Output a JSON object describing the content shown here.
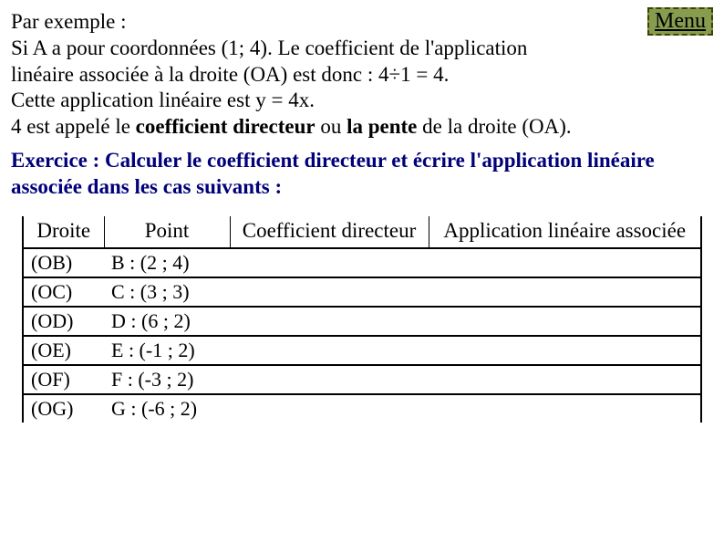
{
  "menu_label": "Menu",
  "example": {
    "line1": "Par exemple :",
    "line2": "Si A a pour coordonnées (1; 4). Le coefficient de l'application",
    "line3": "linéaire associée à la droite (OA) est donc : 4÷1 = 4.",
    "line4": "Cette application linéaire est y = 4x.",
    "line5a": "4 est appelé le ",
    "line5b": "coefficient directeur",
    "line5c": " ou ",
    "line5d": "la pente",
    "line5e": " de la droite (OA)."
  },
  "exercise": {
    "line1": "Exercice : Calculer le coefficient directeur et écrire l'application linéaire",
    "line2": "associée dans les cas suivants :"
  },
  "table": {
    "headers": {
      "droite": "Droite",
      "point": "Point",
      "coef": "Coefficient directeur",
      "app": "Application linéaire associée"
    },
    "rows": [
      {
        "droite": "(OB)",
        "point": "B : (2 ; 4)"
      },
      {
        "droite": "(OC)",
        "point": "C : (3 ; 3)"
      },
      {
        "droite": "(OD)",
        "point": "D : (6 ; 2)"
      },
      {
        "droite": "(OE)",
        "point": "E : (-1 ; 2)"
      },
      {
        "droite": "(OF)",
        "point": "F : (-3 ; 2)"
      },
      {
        "droite": "(OG)",
        "point": "G : (-6 ; 2)"
      }
    ]
  }
}
